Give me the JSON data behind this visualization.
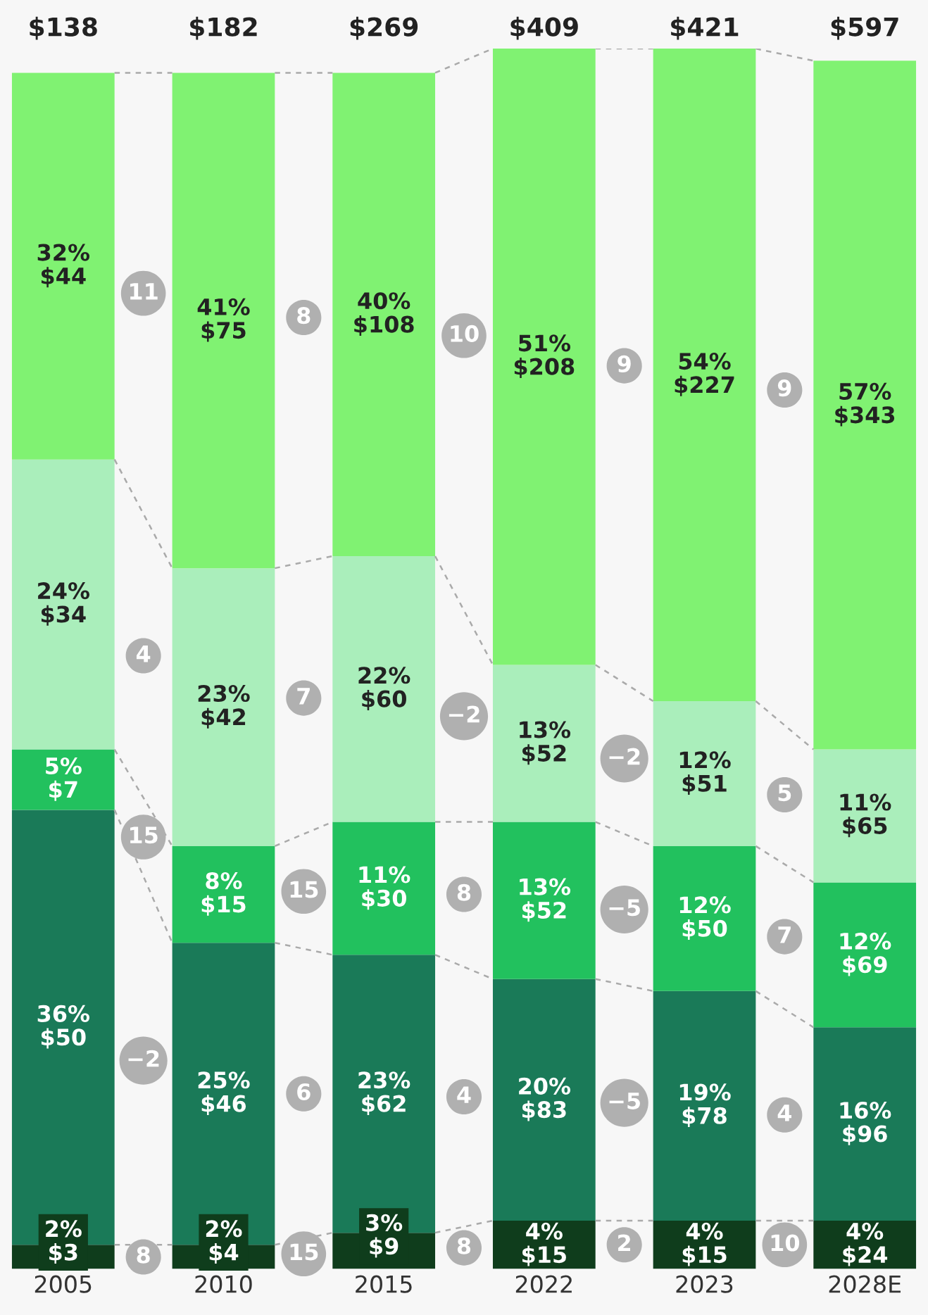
{
  "chart_data": {
    "type": "bar",
    "stacked": true,
    "categories": [
      "2005",
      "2010",
      "2015",
      "2022",
      "2023",
      "2028E"
    ],
    "series": [
      {
        "color": "#0f3d1c",
        "values": [
          2,
          2,
          3,
          4,
          4,
          4
        ],
        "value_labels": [
          "2%\n$3",
          "2%\n$4",
          "3%\n$9",
          "4%\n$15",
          "4%\n$15",
          "4%\n$24"
        ]
      },
      {
        "color": "#1a7a58",
        "values": [
          36,
          25,
          23,
          20,
          19,
          16
        ],
        "value_labels": [
          "36%\n$50",
          "25%\n$46",
          "23%\n$62",
          "20%\n$83",
          "19%\n$78",
          "16%\n$96"
        ]
      },
      {
        "color": "#22c15e",
        "values": [
          5,
          8,
          11,
          13,
          12,
          12
        ],
        "value_labels": [
          "5%\n$7",
          "8%\n$15",
          "11%\n$30",
          "13%\n$52",
          "12%\n$50",
          "12%\n$69"
        ]
      },
      {
        "color": "#aaeebb",
        "values": [
          24,
          23,
          22,
          13,
          12,
          11
        ],
        "value_labels": [
          "24%\n$34",
          "23%\n$42",
          "22%\n$60",
          "13%\n$52",
          "12%\n$51",
          "11%\n$65"
        ]
      },
      {
        "color": "#80f272",
        "values": [
          32,
          41,
          40,
          51,
          54,
          57
        ],
        "value_labels": [
          "32%\n$44",
          "41%\n$75",
          "40%\n$108",
          "51%\n$208",
          "54%\n$227",
          "57%\n$343"
        ]
      }
    ],
    "annotations": [
      "$138",
      "$182",
      "$269",
      "$409",
      "$421",
      "$597",
      "8",
      "−2",
      "15",
      "4",
      "11",
      "15",
      "6",
      "15",
      "7",
      "8",
      "8",
      "4",
      "8",
      "−2",
      "10",
      "2",
      "−5",
      "−5",
      "−2",
      "9",
      "10",
      "4",
      "7",
      "5",
      "9"
    ]
  }
}
